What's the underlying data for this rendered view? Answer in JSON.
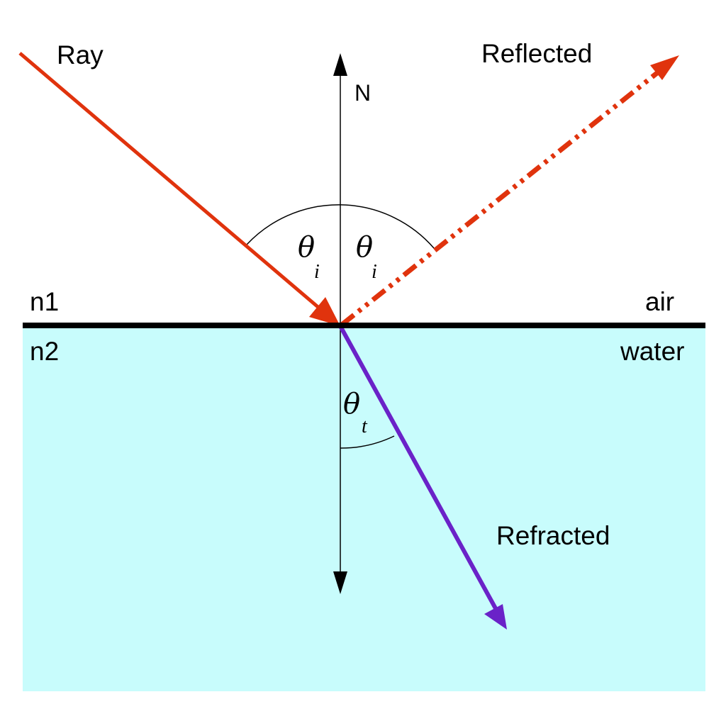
{
  "labels": {
    "ray": "Ray",
    "reflected": "Reflected",
    "refracted": "Refracted",
    "normal": "N",
    "n1": "n1",
    "n2": "n2",
    "medium1": "air",
    "medium2": "water",
    "theta": "θ",
    "incident_sub": "i",
    "transmitted_sub": "t"
  },
  "colors": {
    "incident_ray": "#e0330d",
    "reflected_ray": "#e0330d",
    "refracted_ray": "#6a22c8",
    "water": "#c8fcfc",
    "surface": "#000000"
  },
  "line_styles": {
    "incident_ray": "solid",
    "reflected_ray": "dash-dot-dot",
    "refracted_ray": "solid"
  }
}
